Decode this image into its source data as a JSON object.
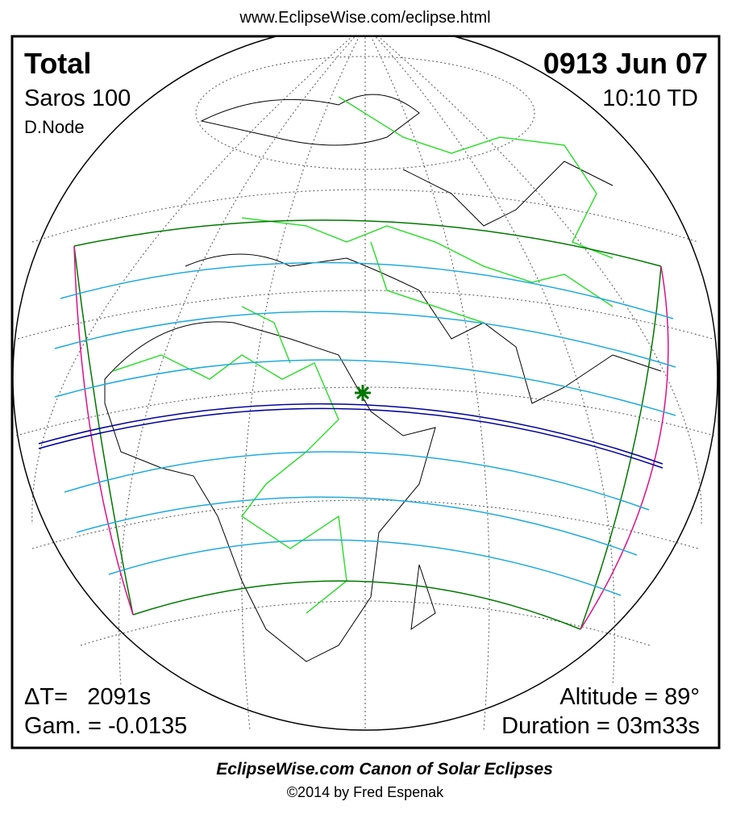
{
  "header": {
    "url": "www.EclipseWise.com/eclipse.html"
  },
  "eclipse": {
    "type": "Total",
    "saros": "Saros 100",
    "node": "D.Node",
    "date": "0913 Jun 07",
    "time": "10:10 TD",
    "delta_t": "ΔT=   2091s",
    "gamma": "Gam. = -0.0135",
    "altitude": "Altitude = 89°",
    "duration": "Duration = 03m33s"
  },
  "footer": {
    "title": "EclipseWise.com Canon of Solar Eclipses",
    "credit": "©2014 by Fred Espenak"
  }
}
